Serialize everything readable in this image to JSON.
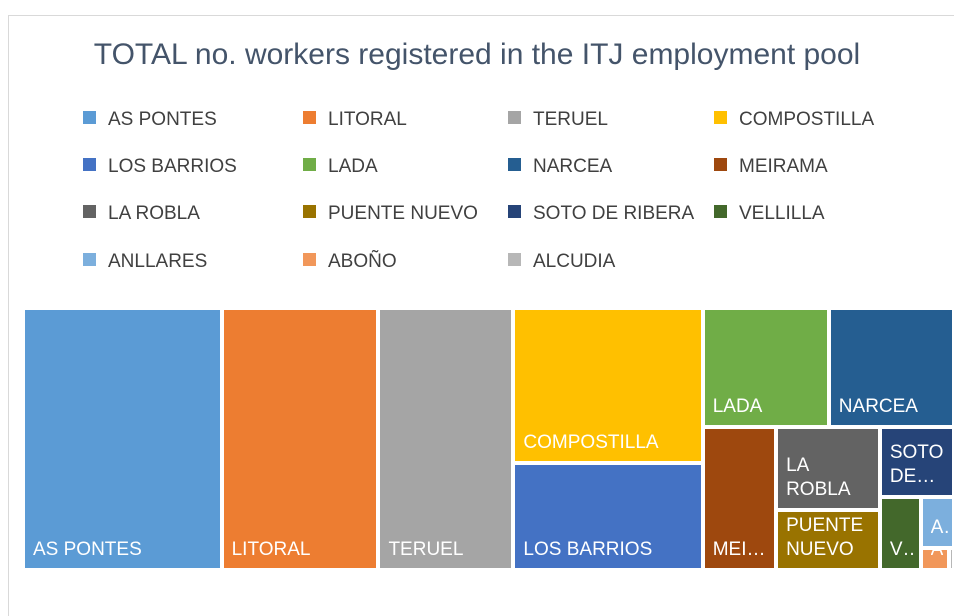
{
  "chart_data": {
    "type": "treemap",
    "title": "TOTAL no. workers registered in the ITJ employment pool",
    "categories": [
      "AS PONTES",
      "LITORAL",
      "TERUEL",
      "COMPOSTILLA",
      "LOS BARRIOS",
      "LADA",
      "NARCEA",
      "MEIRAMA",
      "LA ROBLA",
      "PUENTE NUEVO",
      "SOTO DE RIBERA",
      "VELLILLA",
      "ANLLARES",
      "ABOÑO",
      "ALCUDIA"
    ],
    "values": [
      490,
      387,
      333,
      276,
      191,
      141,
      140,
      99,
      81,
      59,
      49,
      28,
      16,
      6,
      1
    ],
    "colors": [
      "#5b9bd5",
      "#ed7d31",
      "#a5a5a5",
      "#ffc000",
      "#4472c4",
      "#70ad47",
      "#255e91",
      "#9e480e",
      "#636363",
      "#997300",
      "#264478",
      "#43682b",
      "#7cafdd",
      "#f1975a",
      "#b7b7b7"
    ],
    "legend": "top"
  }
}
